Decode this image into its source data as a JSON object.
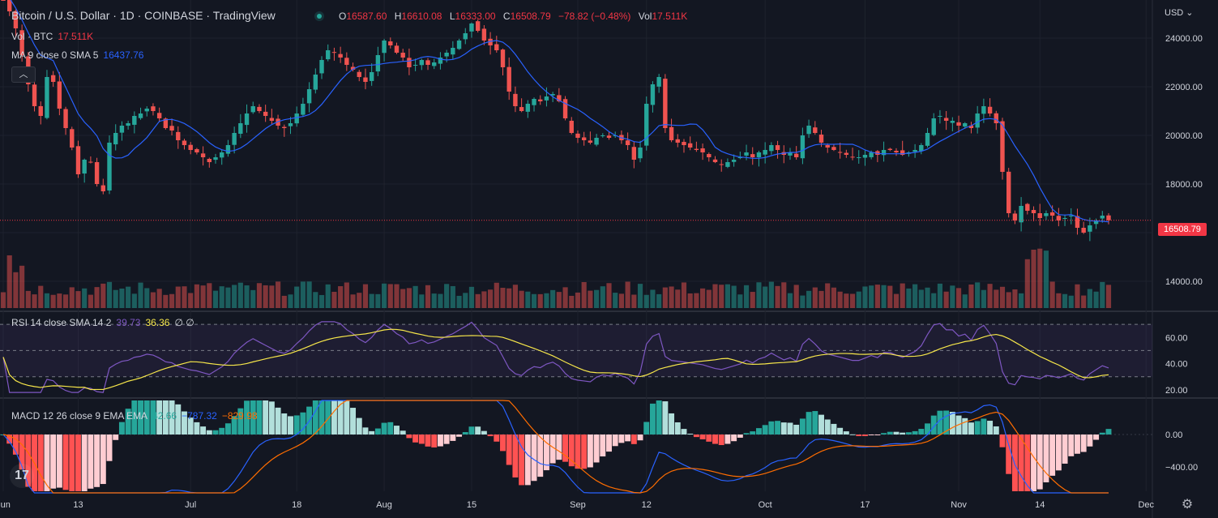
{
  "header": {
    "title": "Bitcoin / U.S. Dollar · 1D · COINBASE · TradingView",
    "ohlc": {
      "o_label": "O",
      "o": "16587.60",
      "h_label": "H",
      "h": "16610.08",
      "l_label": "L",
      "l": "16333.00",
      "c_label": "C",
      "c": "16508.79",
      "change": "−78.82 (−0.48%)",
      "vol_label": "Vol",
      "vol": "17.511K"
    },
    "vol_row": {
      "label": "Vol · BTC",
      "value": "17.511K"
    },
    "ma_row": {
      "label": "MA 9 close 0 SMA 5",
      "value": "16437.76"
    },
    "collapse_icon": "chevron-up-icon",
    "currency": "USD",
    "last_price": "16508.79"
  },
  "rsi_legend": {
    "label": "RSI 14 close SMA 14 2",
    "v1": "39.73",
    "v2": "36.36",
    "v3": "∅ ∅"
  },
  "macd_legend": {
    "label": "MACD 12 26 close 9 EMA EMA",
    "v1": "42.66",
    "v2": "−787.32",
    "v3": "−829.98"
  },
  "colors": {
    "bg": "#131722",
    "up": "#26a69a",
    "down": "#ef5350",
    "ma": "#2962ff",
    "rsi": "#7e57c2",
    "rsi_ma": "#f7e74a",
    "macd": "#2962ff",
    "signal": "#ff6d00",
    "hist_up_strong": "#26a69a",
    "hist_up_weak": "#b2dfdb",
    "hist_down_strong": "#ff5252",
    "hist_down_weak": "#ffcdd2",
    "grid": "#1e222d"
  },
  "chart_data": [
    {
      "type": "candlestick",
      "title": "Bitcoin / U.S. Dollar · 1D · COINBASE",
      "price_ticks": [
        14000,
        16000,
        18000,
        20000,
        22000,
        24000
      ],
      "price_tick_labels": [
        "14000.00",
        "16000.00",
        "18000.00",
        "20000.00",
        "22000.00",
        "24000.00"
      ],
      "ylim": [
        12900,
        25300
      ],
      "x_labels": [
        "Jun",
        "13",
        "Jul",
        "18",
        "Aug",
        "15",
        "Sep",
        "12",
        "Oct",
        "17",
        "Nov",
        "14",
        "Dec"
      ],
      "x_label_days": [
        0,
        12,
        30,
        47,
        61,
        75,
        92,
        103,
        122,
        138,
        153,
        166,
        183
      ],
      "closes": [
        26200,
        25100,
        24400,
        23300,
        22100,
        21200,
        20800,
        22400,
        22200,
        21100,
        20300,
        19500,
        18400,
        19000,
        18900,
        18000,
        17700,
        19700,
        20100,
        20400,
        20500,
        20800,
        20900,
        21100,
        21000,
        20700,
        20300,
        20200,
        19800,
        19600,
        19400,
        19300,
        19100,
        18900,
        19100,
        19300,
        19600,
        20100,
        20500,
        20900,
        21200,
        21000,
        20800,
        20600,
        20400,
        20300,
        20500,
        20900,
        21300,
        21900,
        22500,
        23100,
        23500,
        23400,
        23200,
        22900,
        22700,
        22400,
        22200,
        22600,
        23300,
        23900,
        23700,
        23400,
        23200,
        22800,
        22900,
        23100,
        22900,
        23000,
        23200,
        23400,
        23600,
        23900,
        24200,
        24600,
        24300,
        23900,
        23700,
        23500,
        22800,
        21800,
        21200,
        21000,
        21300,
        21500,
        21400,
        21600,
        21700,
        21400,
        20700,
        20100,
        19900,
        19800,
        19700,
        19900,
        20000,
        19900,
        20000,
        19800,
        19600,
        19000,
        19500,
        21300,
        22100,
        22400,
        20300,
        19800,
        19700,
        19600,
        19500,
        19400,
        19300,
        19100,
        18900,
        18800,
        18900,
        19000,
        19100,
        19300,
        19100,
        19300,
        19400,
        19600,
        19400,
        19200,
        19300,
        19100,
        20000,
        20400,
        20100,
        19700,
        19500,
        19400,
        19300,
        19200,
        19100,
        19100,
        19200,
        19300,
        19200,
        19400,
        19400,
        19300,
        19200,
        19300,
        19400,
        19600,
        20100,
        20700,
        20800,
        20600,
        20600,
        20400,
        20500,
        20300,
        20900,
        21200,
        20900,
        20500,
        18500,
        16800,
        16500,
        17100,
        16900,
        16800,
        16600,
        16800,
        16700,
        16500,
        16600,
        16700,
        16200,
        16000,
        16300,
        16500,
        16700,
        16509
      ],
      "ma_period": 9,
      "ma_last": 16437.76,
      "last_price": 16508.79,
      "volume_label": "Vol · BTC",
      "volume_last": "17.511K",
      "note_start_partial": true
    },
    {
      "type": "line",
      "title": "RSI 14 close SMA 14",
      "rsi_last": 39.73,
      "rsi_ma_last": 36.36,
      "ylim": [
        15,
        75
      ],
      "y_ticks": [
        20,
        40,
        60
      ],
      "y_tick_labels": [
        "20.00",
        "40.00",
        "60.00"
      ],
      "bands": [
        30,
        50,
        70
      ]
    },
    {
      "type": "bar",
      "title": "MACD 12 26 close 9 EMA EMA",
      "hist_last": 42.66,
      "macd_last": -787.32,
      "signal_last": -829.98,
      "ylim": [
        -700,
        420
      ],
      "y_ticks": [
        0,
        -400
      ],
      "y_tick_labels": [
        "0.00",
        "−400.00"
      ]
    }
  ]
}
